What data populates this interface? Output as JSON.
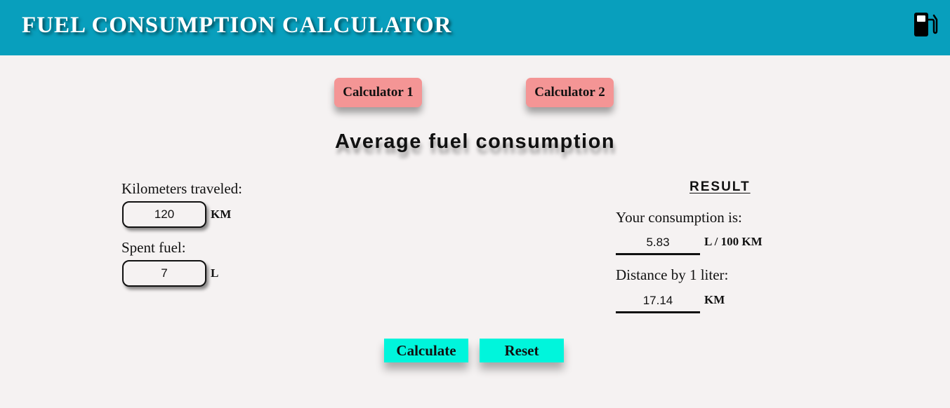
{
  "header": {
    "title": "FUEL CONSUMPTION CALCULATOR",
    "icon": "fuel-pump-icon"
  },
  "tabs": [
    {
      "label": "Calculator 1"
    },
    {
      "label": "Calculator 2"
    }
  ],
  "main": {
    "title": "Average fuel consumption"
  },
  "inputs": {
    "kilometers": {
      "label": "Kilometers traveled:",
      "value": "120",
      "unit": "KM"
    },
    "fuel": {
      "label": "Spent fuel:",
      "value": "7",
      "unit": "L"
    }
  },
  "result": {
    "heading": "RESULT",
    "consumption": {
      "label": "Your consumption is:",
      "value": "5.83",
      "unit": "L / 100 KM"
    },
    "distance": {
      "label": "Distance by 1 liter:",
      "value": "17.14",
      "unit": "KM"
    }
  },
  "actions": {
    "calculate_label": "Calculate",
    "reset_label": "Reset"
  },
  "colors": {
    "header_bg": "#089fbd",
    "tab_bg": "#f49595",
    "action_bg": "#00f5dc",
    "page_bg": "#f5f2f2"
  }
}
